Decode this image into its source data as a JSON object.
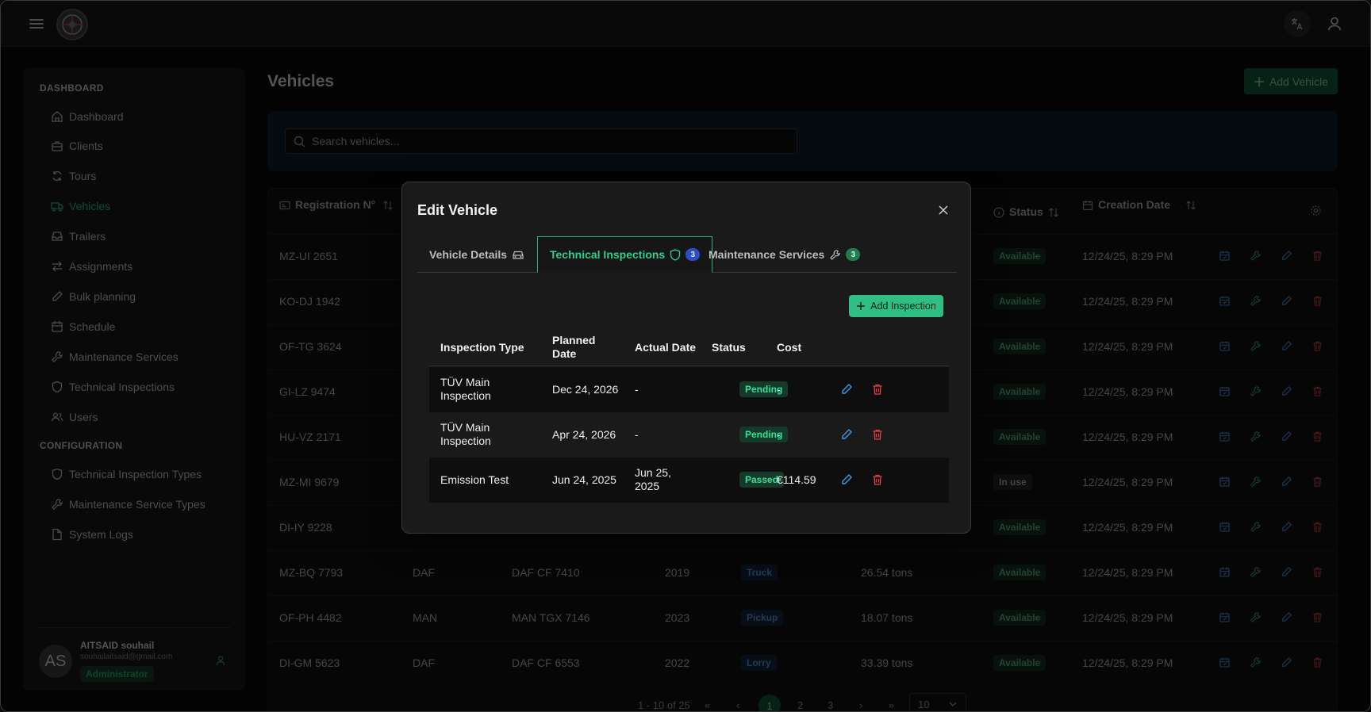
{
  "sidebar": {
    "section_dashboard": "DASHBOARD",
    "section_config": "CONFIGURATION",
    "items": [
      {
        "label": "Dashboard",
        "icon": "home-icon"
      },
      {
        "label": "Clients",
        "icon": "briefcase-icon"
      },
      {
        "label": "Tours",
        "icon": "refresh-icon"
      },
      {
        "label": "Vehicles",
        "icon": "truck-icon",
        "active": true
      },
      {
        "label": "Trailers",
        "icon": "inbox-icon"
      },
      {
        "label": "Assignments",
        "icon": "arrows-icon"
      },
      {
        "label": "Bulk planning",
        "icon": "pencil-icon"
      },
      {
        "label": "Schedule",
        "icon": "calendar-icon"
      },
      {
        "label": "Maintenance Services",
        "icon": "wrench-icon"
      },
      {
        "label": "Technical Inspections",
        "icon": "shield-icon"
      },
      {
        "label": "Users",
        "icon": "users-icon"
      }
    ],
    "config_items": [
      {
        "label": "Technical Inspection Types",
        "icon": "shield-icon"
      },
      {
        "label": "Maintenance Service Types",
        "icon": "wrench-icon"
      },
      {
        "label": "System Logs",
        "icon": "file-icon"
      }
    ],
    "user": {
      "initials": "AS",
      "name": "AITSAID souhail",
      "email": "souhailaitsaid@gmail.com",
      "role": "Administrator"
    }
  },
  "page": {
    "title": "Vehicles",
    "add_vehicle_label": "Add Vehicle",
    "search_placeholder": "Search vehicles..."
  },
  "table": {
    "headers": {
      "registration": "Registration N°",
      "status": "Status",
      "creation_date": "Creation Date"
    },
    "rows": [
      {
        "reg": "MZ-UI 2651",
        "brand": "",
        "model": "",
        "year": "",
        "type": "",
        "capacity": "",
        "status": "Available",
        "created": "12/24/25, 8:29 PM"
      },
      {
        "reg": "KO-DJ 1942",
        "brand": "",
        "model": "",
        "year": "",
        "type": "",
        "capacity": "",
        "status": "Available",
        "created": "12/24/25, 8:29 PM"
      },
      {
        "reg": "OF-TG 3624",
        "brand": "",
        "model": "",
        "year": "",
        "type": "",
        "capacity": "",
        "status": "Available",
        "created": "12/24/25, 8:29 PM"
      },
      {
        "reg": "GI-LZ 9474",
        "brand": "",
        "model": "",
        "year": "",
        "type": "",
        "capacity": "",
        "status": "Available",
        "created": "12/24/25, 8:29 PM"
      },
      {
        "reg": "HU-VZ 2171",
        "brand": "",
        "model": "",
        "year": "",
        "type": "",
        "capacity": "",
        "status": "Available",
        "created": "12/24/25, 8:29 PM"
      },
      {
        "reg": "MZ-MI 9679",
        "brand": "",
        "model": "",
        "year": "",
        "type": "",
        "capacity": "",
        "status": "In use",
        "created": "12/24/25, 8:29 PM"
      },
      {
        "reg": "DI-IY 9228",
        "brand": "",
        "model": "",
        "year": "",
        "type": "",
        "capacity": "",
        "status": "Available",
        "created": "12/24/25, 8:29 PM"
      },
      {
        "reg": "MZ-BQ 7793",
        "brand": "DAF",
        "model": "DAF CF 7410",
        "year": "2019",
        "type": "Truck",
        "capacity": "26.54 tons",
        "status": "Available",
        "created": "12/24/25, 8:29 PM"
      },
      {
        "reg": "OF-PH 4482",
        "brand": "MAN",
        "model": "MAN TGX 7146",
        "year": "2023",
        "type": "Pickup",
        "capacity": "18.07 tons",
        "status": "Available",
        "created": "12/24/25, 8:29 PM"
      },
      {
        "reg": "DI-GM 5623",
        "brand": "DAF",
        "model": "DAF CF 6553",
        "year": "2022",
        "type": "Lorry",
        "capacity": "33.39 tons",
        "status": "Available",
        "created": "12/24/25, 8:29 PM"
      }
    ],
    "pagination": {
      "range": "1 - 10 of 25",
      "pages": [
        "1",
        "2",
        "3"
      ],
      "current": "1",
      "page_size": "10"
    }
  },
  "modal": {
    "title": "Edit Vehicle",
    "tabs": [
      {
        "label": "Vehicle Details",
        "icon": "car-icon"
      },
      {
        "label": "Technical Inspections",
        "icon": "shield-icon",
        "count": "3"
      },
      {
        "label": "Maintenance Services",
        "icon": "wrench-icon",
        "count": "3"
      }
    ],
    "add_inspection_label": "Add Inspection",
    "headers": {
      "type": "Inspection Type",
      "planned": "Planned Date",
      "actual": "Actual Date",
      "status": "Status",
      "cost": "Cost"
    },
    "inspections": [
      {
        "type": "TÜV Main Inspection",
        "planned": "Dec 24, 2026",
        "actual": "-",
        "status": "Pending",
        "cost": "-"
      },
      {
        "type": "TÜV Main Inspection",
        "planned": "Apr 24, 2026",
        "actual": "-",
        "status": "Pending",
        "cost": "-"
      },
      {
        "type": "Emission Test",
        "planned": "Jun 24, 2025",
        "actual": "Jun 25, 2025",
        "status": "Passed",
        "cost": "€114.59"
      }
    ]
  },
  "colors": {
    "accent": "#2fbf85",
    "active_tab": "#2fcf8f",
    "count_blue": "#2a4fc9"
  }
}
